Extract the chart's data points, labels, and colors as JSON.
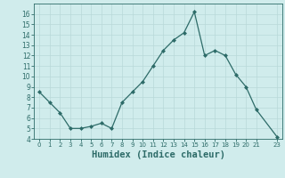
{
  "x": [
    0,
    1,
    2,
    3,
    4,
    5,
    6,
    7,
    8,
    9,
    10,
    11,
    12,
    13,
    14,
    15,
    16,
    17,
    18,
    19,
    20,
    21,
    23
  ],
  "y": [
    8.5,
    7.5,
    6.5,
    5.0,
    5.0,
    5.2,
    5.5,
    5.0,
    7.5,
    8.5,
    9.5,
    11.0,
    12.5,
    13.5,
    14.2,
    16.2,
    12.0,
    12.5,
    12.0,
    10.2,
    9.0,
    6.8,
    4.2
  ],
  "line_color": "#2d6b68",
  "marker": "D",
  "marker_size": 2.0,
  "bg_color": "#d0ecec",
  "grid_color": "#b8d8d8",
  "tick_color": "#2d6b68",
  "xlabel": "Humidex (Indice chaleur)",
  "xlabel_fontsize": 7.5,
  "ylim": [
    4,
    17
  ],
  "xlim": [
    -0.5,
    23.5
  ],
  "yticks": [
    4,
    5,
    6,
    7,
    8,
    9,
    10,
    11,
    12,
    13,
    14,
    15,
    16
  ],
  "xticks": [
    0,
    1,
    2,
    3,
    4,
    5,
    6,
    7,
    8,
    9,
    10,
    11,
    12,
    13,
    14,
    15,
    16,
    17,
    18,
    19,
    20,
    21,
    23
  ],
  "xtick_labels": [
    "0",
    "1",
    "2",
    "3",
    "4",
    "5",
    "6",
    "7",
    "8",
    "9",
    "10",
    "11",
    "12",
    "13",
    "14",
    "15",
    "16",
    "17",
    "18",
    "19",
    "20",
    "21",
    "23"
  ]
}
